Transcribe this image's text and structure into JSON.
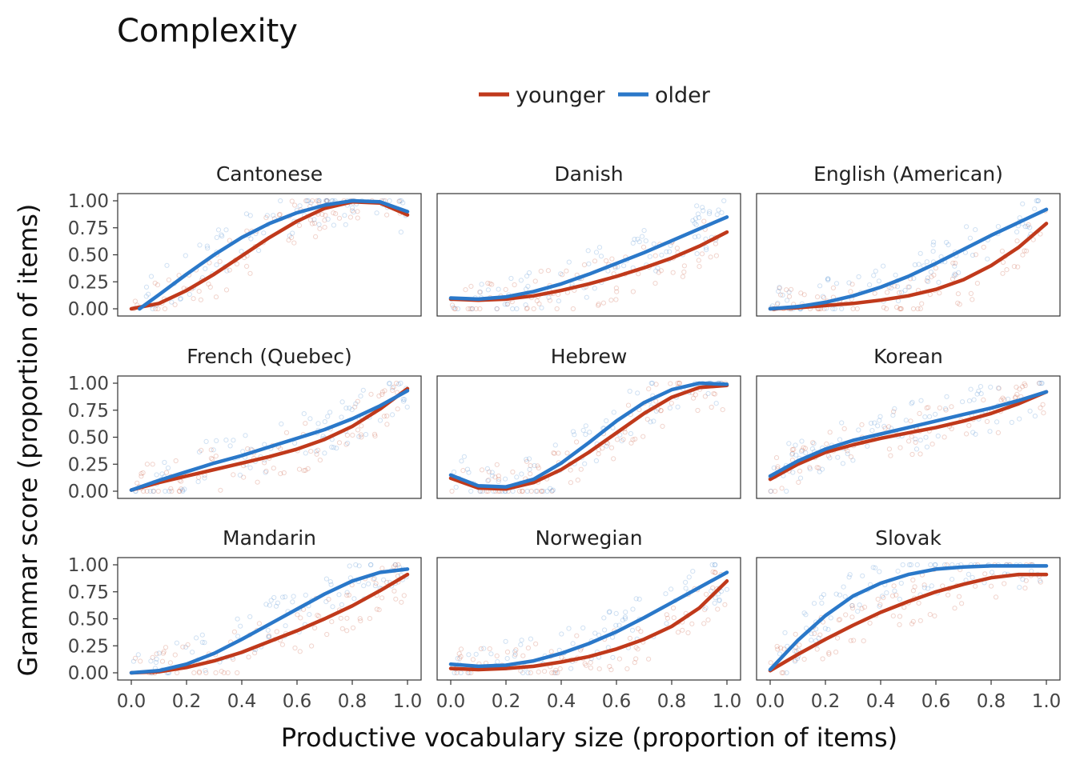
{
  "chart_data": {
    "type": "line",
    "title": "Complexity",
    "xlabel": "Productive vocabulary size (proportion of items)",
    "ylabel": "Grammar score (proportion of items)",
    "xlim": [
      0,
      1
    ],
    "ylim": [
      0,
      1
    ],
    "x_ticks": [
      "0.0",
      "0.2",
      "0.4",
      "0.6",
      "0.8",
      "1.0"
    ],
    "y_ticks": [
      "0.00",
      "0.25",
      "0.50",
      "0.75",
      "1.00"
    ],
    "legend": {
      "position": "top",
      "entries": [
        {
          "name": "younger",
          "color": "#c0391b"
        },
        {
          "name": "older",
          "color": "#2a78c9"
        }
      ]
    },
    "grid": false,
    "panels": [
      {
        "name": "Cantonese",
        "series": [
          {
            "name": "younger",
            "x": [
              0.0,
              0.1,
              0.2,
              0.3,
              0.4,
              0.5,
              0.6,
              0.7,
              0.8,
              0.9,
              1.0
            ],
            "y": [
              0.0,
              0.05,
              0.17,
              0.32,
              0.49,
              0.66,
              0.81,
              0.93,
              0.99,
              0.98,
              0.87
            ]
          },
          {
            "name": "older",
            "x": [
              0.03,
              0.1,
              0.2,
              0.3,
              0.4,
              0.5,
              0.6,
              0.7,
              0.8,
              0.9,
              1.0
            ],
            "y": [
              0.0,
              0.13,
              0.32,
              0.5,
              0.66,
              0.79,
              0.89,
              0.96,
              1.0,
              0.99,
              0.9
            ]
          }
        ]
      },
      {
        "name": "Danish",
        "series": [
          {
            "name": "younger",
            "x": [
              0.0,
              0.1,
              0.2,
              0.3,
              0.4,
              0.5,
              0.6,
              0.7,
              0.8,
              0.9,
              1.0
            ],
            "y": [
              0.09,
              0.08,
              0.09,
              0.12,
              0.17,
              0.23,
              0.3,
              0.38,
              0.47,
              0.58,
              0.71
            ]
          },
          {
            "name": "older",
            "x": [
              0.0,
              0.1,
              0.2,
              0.3,
              0.4,
              0.5,
              0.6,
              0.7,
              0.8,
              0.9,
              1.0
            ],
            "y": [
              0.1,
              0.09,
              0.11,
              0.16,
              0.23,
              0.32,
              0.42,
              0.52,
              0.63,
              0.74,
              0.85
            ]
          }
        ]
      },
      {
        "name": "English (American)",
        "series": [
          {
            "name": "younger",
            "x": [
              0.0,
              0.1,
              0.2,
              0.3,
              0.4,
              0.5,
              0.6,
              0.7,
              0.8,
              0.9,
              1.0
            ],
            "y": [
              0.0,
              0.01,
              0.03,
              0.05,
              0.08,
              0.12,
              0.18,
              0.27,
              0.4,
              0.57,
              0.79
            ]
          },
          {
            "name": "older",
            "x": [
              0.0,
              0.1,
              0.2,
              0.3,
              0.4,
              0.5,
              0.6,
              0.7,
              0.8,
              0.9,
              1.0
            ],
            "y": [
              0.0,
              0.02,
              0.06,
              0.12,
              0.2,
              0.3,
              0.42,
              0.55,
              0.68,
              0.8,
              0.92
            ]
          }
        ]
      },
      {
        "name": "French (Quebec)",
        "series": [
          {
            "name": "younger",
            "x": [
              0.0,
              0.1,
              0.2,
              0.3,
              0.4,
              0.5,
              0.6,
              0.7,
              0.8,
              0.9,
              1.0
            ],
            "y": [
              0.01,
              0.08,
              0.14,
              0.2,
              0.26,
              0.32,
              0.39,
              0.48,
              0.6,
              0.76,
              0.95
            ]
          },
          {
            "name": "older",
            "x": [
              0.0,
              0.1,
              0.2,
              0.3,
              0.4,
              0.5,
              0.6,
              0.7,
              0.8,
              0.9,
              1.0
            ],
            "y": [
              0.01,
              0.1,
              0.18,
              0.26,
              0.33,
              0.41,
              0.49,
              0.57,
              0.67,
              0.79,
              0.93
            ]
          }
        ]
      },
      {
        "name": "Hebrew",
        "series": [
          {
            "name": "younger",
            "x": [
              0.0,
              0.1,
              0.2,
              0.3,
              0.4,
              0.5,
              0.6,
              0.7,
              0.8,
              0.9,
              1.0
            ],
            "y": [
              0.12,
              0.03,
              0.02,
              0.08,
              0.2,
              0.36,
              0.54,
              0.72,
              0.87,
              0.96,
              0.98
            ]
          },
          {
            "name": "older",
            "x": [
              0.0,
              0.1,
              0.2,
              0.3,
              0.4,
              0.5,
              0.6,
              0.7,
              0.8,
              0.9,
              1.0
            ],
            "y": [
              0.15,
              0.05,
              0.04,
              0.11,
              0.26,
              0.45,
              0.65,
              0.82,
              0.94,
              1.0,
              0.99
            ]
          }
        ]
      },
      {
        "name": "Korean",
        "series": [
          {
            "name": "younger",
            "x": [
              0.0,
              0.1,
              0.2,
              0.3,
              0.4,
              0.5,
              0.6,
              0.7,
              0.8,
              0.9,
              1.0
            ],
            "y": [
              0.11,
              0.25,
              0.36,
              0.43,
              0.49,
              0.54,
              0.59,
              0.65,
              0.72,
              0.81,
              0.92
            ]
          },
          {
            "name": "older",
            "x": [
              0.0,
              0.1,
              0.2,
              0.3,
              0.4,
              0.5,
              0.6,
              0.7,
              0.8,
              0.9,
              1.0
            ],
            "y": [
              0.14,
              0.28,
              0.39,
              0.47,
              0.53,
              0.59,
              0.65,
              0.71,
              0.77,
              0.84,
              0.92
            ]
          }
        ]
      },
      {
        "name": "Mandarin",
        "series": [
          {
            "name": "younger",
            "x": [
              0.0,
              0.1,
              0.2,
              0.3,
              0.4,
              0.5,
              0.6,
              0.7,
              0.8,
              0.9,
              1.0
            ],
            "y": [
              0.0,
              0.01,
              0.05,
              0.11,
              0.19,
              0.29,
              0.39,
              0.5,
              0.62,
              0.76,
              0.91
            ]
          },
          {
            "name": "older",
            "x": [
              0.0,
              0.1,
              0.2,
              0.3,
              0.4,
              0.5,
              0.6,
              0.7,
              0.8,
              0.9,
              1.0
            ],
            "y": [
              0.0,
              0.02,
              0.08,
              0.18,
              0.31,
              0.45,
              0.59,
              0.73,
              0.85,
              0.93,
              0.96
            ]
          }
        ]
      },
      {
        "name": "Norwegian",
        "series": [
          {
            "name": "younger",
            "x": [
              0.0,
              0.1,
              0.2,
              0.3,
              0.4,
              0.5,
              0.6,
              0.7,
              0.8,
              0.9,
              1.0
            ],
            "y": [
              0.04,
              0.03,
              0.04,
              0.06,
              0.1,
              0.15,
              0.22,
              0.31,
              0.43,
              0.6,
              0.85
            ]
          },
          {
            "name": "older",
            "x": [
              0.0,
              0.1,
              0.2,
              0.3,
              0.4,
              0.5,
              0.6,
              0.7,
              0.8,
              0.9,
              1.0
            ],
            "y": [
              0.08,
              0.06,
              0.07,
              0.11,
              0.18,
              0.27,
              0.38,
              0.51,
              0.65,
              0.79,
              0.93
            ]
          }
        ]
      },
      {
        "name": "Slovak",
        "series": [
          {
            "name": "younger",
            "x": [
              0.0,
              0.1,
              0.2,
              0.3,
              0.4,
              0.5,
              0.6,
              0.7,
              0.8,
              0.9,
              1.0
            ],
            "y": [
              0.02,
              0.17,
              0.31,
              0.44,
              0.56,
              0.66,
              0.75,
              0.82,
              0.88,
              0.91,
              0.91
            ]
          },
          {
            "name": "older",
            "x": [
              0.0,
              0.1,
              0.2,
              0.3,
              0.4,
              0.5,
              0.6,
              0.7,
              0.8,
              0.9,
              1.0
            ],
            "y": [
              0.03,
              0.3,
              0.53,
              0.71,
              0.83,
              0.91,
              0.96,
              0.98,
              0.99,
              0.99,
              0.99
            ]
          }
        ]
      }
    ]
  }
}
